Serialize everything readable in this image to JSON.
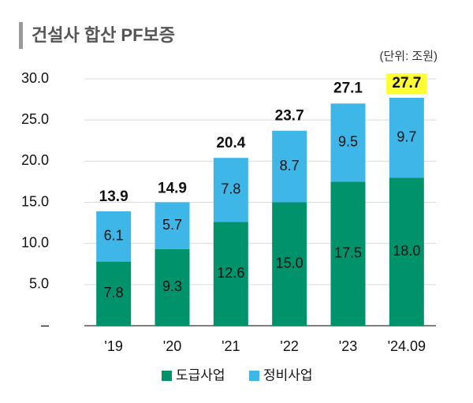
{
  "chart_data": {
    "type": "stacked_bar",
    "title": "건설사 합산 PF보증",
    "unit": "(단위: 조원)",
    "categories": [
      "'19",
      "'20",
      "'21",
      "'22",
      "'23",
      "'24.09"
    ],
    "series": [
      {
        "name": "도급사업",
        "color": "#00936b",
        "values": [
          7.8,
          9.3,
          12.6,
          15.0,
          17.5,
          18.0
        ],
        "value_labels": [
          "7.8",
          "9.3",
          "12.6",
          "15.0",
          "17.5",
          "18.0"
        ]
      },
      {
        "name": "정비사업",
        "color": "#3fb6e8",
        "values": [
          6.1,
          5.7,
          7.8,
          8.7,
          9.5,
          9.7
        ],
        "value_labels": [
          "6.1",
          "5.7",
          "7.8",
          "8.7",
          "9.5",
          "9.7"
        ]
      }
    ],
    "totals": [
      13.9,
      14.9,
      20.4,
      23.7,
      27.1,
      27.7
    ],
    "highlight_index": 5,
    "highlight_color": "#ffff33",
    "ylim": [
      0,
      30
    ],
    "yticks": [
      {
        "value": 0,
        "label": "–"
      },
      {
        "value": 5,
        "label": "5.0"
      },
      {
        "value": 10,
        "label": "10.0"
      },
      {
        "value": 15,
        "label": "15.0"
      },
      {
        "value": 20,
        "label": "20.0"
      },
      {
        "value": 25,
        "label": "25.0"
      },
      {
        "value": 30,
        "label": "30.0"
      }
    ],
    "grid": true
  }
}
